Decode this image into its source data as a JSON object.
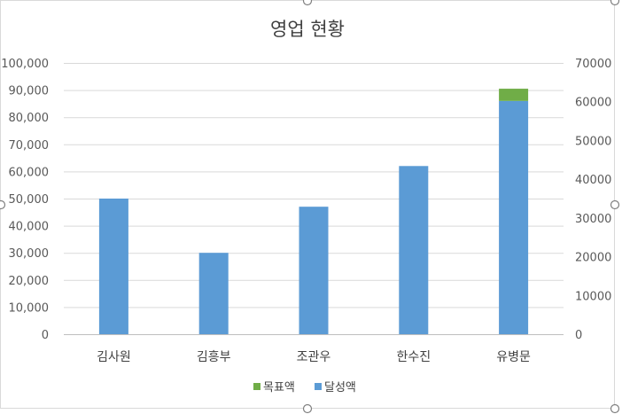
{
  "chart_data": {
    "type": "bar",
    "title": "영업 현황",
    "categories": [
      "김사원",
      "김흥부",
      "조관우",
      "한수진",
      "유병문"
    ],
    "series": [
      {
        "name": "달성액",
        "axis": "primary",
        "values": [
          50000,
          30000,
          47000,
          62000,
          86000
        ],
        "color": "#5B9BD5"
      },
      {
        "name": "목표액",
        "axis": "primary",
        "values": [
          0,
          0,
          0,
          0,
          4500
        ],
        "color": "#70AD47"
      }
    ],
    "stacked": true,
    "y_left": {
      "min": 0,
      "max": 100000,
      "step": 10000,
      "tick_labels": [
        "0",
        "10,000",
        "20,000",
        "30,000",
        "40,000",
        "50,000",
        "60,000",
        "70,000",
        "80,000",
        "90,000",
        "100,000"
      ]
    },
    "y_right": {
      "min": 0,
      "max": 70000,
      "step": 10000,
      "tick_labels": [
        "0",
        "10000",
        "20000",
        "30000",
        "40000",
        "50000",
        "60000",
        "70000"
      ]
    },
    "grid": true,
    "legend": {
      "placement": "bottom",
      "entries": [
        {
          "label": "목표액",
          "color": "#70AD47"
        },
        {
          "label": "달성액",
          "color": "#5B9BD5"
        }
      ]
    }
  }
}
